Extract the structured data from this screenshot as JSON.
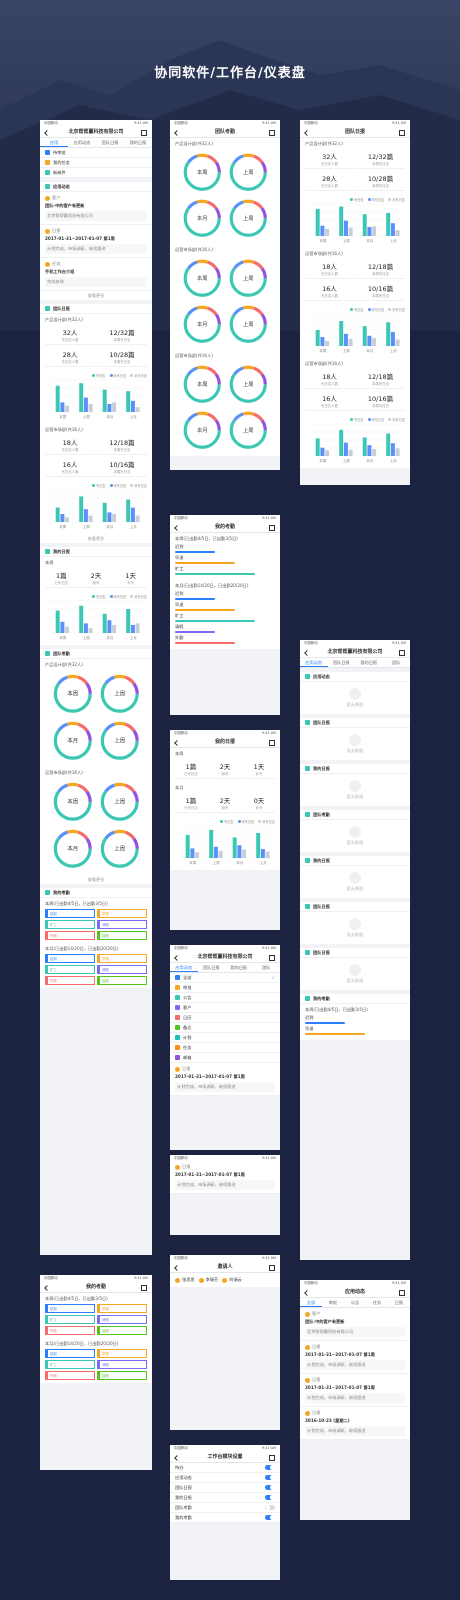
{
  "title": "协同软件/工作台/仪表盘",
  "status": {
    "carrier": "中国移动",
    "time": "9:41 AM"
  },
  "screens": [
    {
      "blocks": [
        {
          "type": "nav",
          "title": "北京帮帮赢科技有限公司"
        },
        {
          "type": "tabs",
          "items": [
            "应用",
            "应用动态",
            "团队日报",
            "我的日报"
          ]
        },
        {
          "type": "menu",
          "items": [
            "待审批",
            "我的任务",
            "新邮件"
          ]
        },
        {
          "type": "section",
          "title": "应用动态"
        },
        {
          "type": "feed",
          "user": "客户",
          "title": "团队-中的客户有更新",
          "text": "北京帮帮赢科技有限公司"
        },
        {
          "type": "feed",
          "user": "日报",
          "title": "2017-01-31~2017-01-07 第1周",
          "text": "计划完成，市场调研，继续跟进"
        },
        {
          "type": "feed",
          "user": "任务",
          "title": "手机工作台介绍",
          "text": "完成修改"
        },
        {
          "type": "more",
          "text": "查看更多"
        },
        {
          "type": "section",
          "title": "团队日报"
        },
        {
          "type": "stats",
          "caption": "产品设计部(共32人)",
          "items": [
            {
              "value": "32人",
              "label": "写日志人数"
            },
            {
              "value": "12/32篇",
              "label": "本周写日志"
            },
            {
              "value": "28人",
              "label": "写日志人数"
            },
            {
              "value": "10/28篇",
              "label": "本周写日志"
            }
          ]
        },
        {
          "type": "bars",
          "categories": [
            "本周",
            "上周",
            "本月",
            "上月"
          ],
          "series": [
            {
              "name": "写日志",
              "color": "#3cc7b5",
              "values": [
                82,
                90,
                70,
                65
              ]
            },
            {
              "name": "未写日志",
              "color": "#5b8ff9",
              "values": [
                30,
                45,
                25,
                35
              ]
            },
            {
              "name": "补写日志",
              "color": "#c8ced8",
              "values": [
                20,
                25,
                30,
                15
              ]
            }
          ]
        },
        {
          "type": "stats",
          "caption": "运营市场部(共16人)",
          "items": [
            {
              "value": "18人",
              "label": "写日志人数"
            },
            {
              "value": "12/18篇",
              "label": "本周写日志"
            },
            {
              "value": "16人",
              "label": "写日志人数"
            },
            {
              "value": "10/16篇",
              "label": "本周写日志"
            }
          ]
        },
        {
          "type": "bars",
          "categories": [
            "本周",
            "上周",
            "本月",
            "上月"
          ],
          "series": [
            {
              "name": "写日志",
              "color": "#3cc7b5",
              "values": [
                45,
                80,
                60,
                70
              ]
            },
            {
              "name": "未写日志",
              "color": "#5b8ff9",
              "values": [
                25,
                40,
                30,
                45
              ]
            },
            {
              "name": "补写日志",
              "color": "#c8ced8",
              "values": [
                15,
                20,
                25,
                20
              ]
            }
          ]
        },
        {
          "type": "more",
          "text": "查看更多"
        },
        {
          "type": "section",
          "title": "我的日报"
        },
        {
          "type": "stats",
          "caption": "本周",
          "items": [
            {
              "value": "1篇",
              "label": "已写日志"
            },
            {
              "value": "2天",
              "label": "缺写"
            },
            {
              "value": "1天",
              "label": "补写"
            }
          ]
        },
        {
          "type": "bars",
          "categories": [
            "本周",
            "上周",
            "本月",
            "上月"
          ],
          "series": [
            {
              "name": "写日志",
              "color": "#3cc7b5",
              "values": [
                70,
                85,
                60,
                75
              ]
            },
            {
              "name": "未写日志",
              "color": "#5b8ff9",
              "values": [
                35,
                30,
                40,
                25
              ]
            },
            {
              "name": "补写日志",
              "color": "#c8ced8",
              "values": [
                20,
                15,
                25,
                30
              ]
            }
          ]
        },
        {
          "type": "section",
          "title": "团队考勤"
        },
        {
          "type": "donuts",
          "caption": "产品设计部(共32人)",
          "items": [
            "本周",
            "上周",
            "本月",
            "上周"
          ]
        },
        {
          "type": "donuts",
          "caption": "运营市场部(共16人)",
          "items": [
            "本周",
            "上周",
            "本月",
            "上周"
          ]
        },
        {
          "type": "more",
          "text": "查看更多"
        },
        {
          "type": "section",
          "title": "我的考勤"
        },
        {
          "type": "tags",
          "caption": "本周(已出勤4/5日，已出勤3/5日)",
          "items": [
            "迟到",
            "早退",
            "旷工",
            "请假",
            "外勤",
            "加班"
          ]
        },
        {
          "type": "tags",
          "caption": "本月(已出勤14/20日，已出勤20/20日)",
          "items": [
            "迟到",
            "早退",
            "旷工",
            "请假",
            "外勤",
            "加班"
          ]
        }
      ]
    },
    {
      "blocks": [
        {
          "type": "nav",
          "title": "我的考勤"
        },
        {
          "type": "tags",
          "caption": "本周(已出勤4/5日，已出勤3/5日)",
          "items": [
            "迟到",
            "早退",
            "旷工",
            "请假",
            "外勤",
            "加班"
          ]
        },
        {
          "type": "tags",
          "caption": "本月(已出勤14/20日，已出勤20/20日)",
          "items": [
            "迟到",
            "早退",
            "旷工",
            "请假",
            "外勤",
            "加班"
          ]
        }
      ]
    },
    {
      "blocks": [
        {
          "type": "nav",
          "title": "团队考勤"
        },
        {
          "type": "donuts",
          "caption": "产品设计部(共32人)",
          "items": [
            "本周",
            "上周",
            "本月",
            "上周"
          ]
        },
        {
          "type": "donuts",
          "caption": "运营市场部(共16人)",
          "items": [
            "本周",
            "上周",
            "本月",
            "上周"
          ]
        },
        {
          "type": "donuts",
          "caption": "运营市场部(共16人)",
          "items": [
            "本周",
            "上周",
            "本月",
            "上周"
          ]
        }
      ]
    },
    {
      "blocks": [
        {
          "type": "nav",
          "title": "我的考勤"
        },
        {
          "type": "progress",
          "caption": "本周(已出勤4/5日，已出勤3/5日)",
          "items": [
            "迟到",
            "早退",
            "旷工"
          ]
        },
        {
          "type": "progress",
          "caption": "本月(已出勤14/20日，已出勤20/20日)",
          "items": [
            "迟到",
            "早退",
            "旷工",
            "请假",
            "外勤"
          ]
        }
      ]
    },
    {
      "blocks": [
        {
          "type": "nav",
          "title": "我的日报"
        },
        {
          "type": "stats",
          "caption": "本周",
          "items": [
            {
              "value": "1篇",
              "label": "已写日志"
            },
            {
              "value": "2天",
              "label": "缺写"
            },
            {
              "value": "1天",
              "label": "补写"
            }
          ]
        },
        {
          "type": "stats",
          "caption": "本月",
          "items": [
            {
              "value": "1篇",
              "label": "已写日志"
            },
            {
              "value": "2天",
              "label": "缺写"
            },
            {
              "value": "0天",
              "label": "补写"
            }
          ]
        },
        {
          "type": "bars",
          "categories": [
            "本周",
            "上周",
            "本月",
            "上月"
          ],
          "series": [
            {
              "name": "写日志",
              "color": "#3cc7b5",
              "values": [
                72,
                88,
                64,
                78
              ]
            },
            {
              "name": "未写日志",
              "color": "#5b8ff9",
              "values": [
                30,
                35,
                40,
                28
              ]
            },
            {
              "name": "补写日志",
              "color": "#c8ced8",
              "values": [
                18,
                22,
                26,
                20
              ]
            }
          ]
        }
      ]
    },
    {
      "blocks": [
        {
          "type": "nav",
          "title": "北京帮帮赢科技有限公司"
        },
        {
          "type": "tabs",
          "items": [
            "应用动态",
            "团队日报",
            "我的日报",
            "团队"
          ]
        },
        {
          "type": "checklist",
          "items": [
            "全部",
            "审批",
            "公告",
            "客户",
            "日历",
            "备忘",
            "计划",
            "任务",
            "邮箱"
          ]
        },
        {
          "type": "feed",
          "user": "日报",
          "title": "2017-01-31~2017-01-07 第1周",
          "text": "计划完成，市场调研，继续跟进"
        }
      ]
    },
    {
      "blocks": [
        {
          "type": "feed",
          "user": "日报",
          "title": "2017-01-31~2017-01-07 第1周",
          "text": "计划完成，市场调研，继续跟进"
        }
      ]
    },
    {
      "blocks": [
        {
          "type": "nav",
          "title": "邀请人"
        },
        {
          "type": "contacts",
          "items": [
            "张思思",
            "李瑞芬",
            "刘瑞云"
          ]
        }
      ]
    },
    {
      "blocks": [
        {
          "type": "nav",
          "title": "工作台模块设置"
        },
        {
          "type": "toggles",
          "items": [
            {
              "label": "待办",
              "on": true
            },
            {
              "label": "应用动态",
              "on": true
            },
            {
              "label": "团队日报",
              "on": true
            },
            {
              "label": "我的日报",
              "on": true
            },
            {
              "label": "团队考勤",
              "on": false
            },
            {
              "label": "我的考勤",
              "on": true
            }
          ]
        }
      ]
    },
    {
      "blocks": [
        {
          "type": "nav",
          "title": "团队日报"
        },
        {
          "type": "stats",
          "caption": "产品设计部(共32人)",
          "items": [
            {
              "value": "32人",
              "label": "写日志人数"
            },
            {
              "value": "12/32篇",
              "label": "本周写日志"
            },
            {
              "value": "28人",
              "label": "写日志人数"
            },
            {
              "value": "10/28篇",
              "label": "本周写日志"
            }
          ]
        },
        {
          "type": "bars",
          "categories": [
            "本周",
            "上周",
            "本月",
            "上月"
          ],
          "series": [
            {
              "name": "写日志",
              "color": "#3cc7b5",
              "values": [
                85,
                92,
                68,
                72
              ]
            },
            {
              "name": "未写日志",
              "color": "#5b8ff9",
              "values": [
                32,
                48,
                28,
                40
              ]
            },
            {
              "name": "补写日志",
              "color": "#c8ced8",
              "values": [
                22,
                26,
                30,
                18
              ]
            }
          ]
        },
        {
          "type": "stats",
          "caption": "运营市场部(共16人)",
          "items": [
            {
              "value": "18人",
              "label": "写日志人数"
            },
            {
              "value": "12/18篇",
              "label": "本周写日志"
            },
            {
              "value": "16人",
              "label": "写日志人数"
            },
            {
              "value": "10/16篇",
              "label": "本周写日志"
            }
          ]
        },
        {
          "type": "bars",
          "categories": [
            "本周",
            "上周",
            "本月",
            "上月"
          ],
          "series": [
            {
              "name": "写日志",
              "color": "#3cc7b5",
              "values": [
                50,
                78,
                62,
                74
              ]
            },
            {
              "name": "未写日志",
              "color": "#5b8ff9",
              "values": [
                28,
                38,
                32,
                44
              ]
            },
            {
              "name": "补写日志",
              "color": "#c8ced8",
              "values": [
                16,
                22,
                24,
                20
              ]
            }
          ]
        },
        {
          "type": "stats",
          "caption": "运营市场部(共16人)",
          "items": [
            {
              "value": "18人",
              "label": "写日志人数"
            },
            {
              "value": "12/18篇",
              "label": "本周写日志"
            },
            {
              "value": "16人",
              "label": "写日志人数"
            },
            {
              "value": "10/16篇",
              "label": "本周写日志"
            }
          ]
        },
        {
          "type": "bars",
          "categories": [
            "本周",
            "上周",
            "本月",
            "上月"
          ],
          "series": [
            {
              "name": "写日志",
              "color": "#3cc7b5",
              "values": [
                55,
                82,
                58,
                70
              ]
            },
            {
              "name": "未写日志",
              "color": "#5b8ff9",
              "values": [
                26,
                42,
                34,
                40
              ]
            },
            {
              "name": "补写日志",
              "color": "#c8ced8",
              "values": [
                18,
                20,
                22,
                24
              ]
            }
          ]
        }
      ]
    },
    {
      "blocks": [
        {
          "type": "nav",
          "title": "北京帮帮赢科技有限公司"
        },
        {
          "type": "tabs",
          "items": [
            "应用动态",
            "团队日报",
            "我的日报",
            "团队"
          ]
        },
        {
          "type": "section",
          "title": "应用动态"
        },
        {
          "type": "empty",
          "text": "暂无数据"
        },
        {
          "type": "section",
          "title": "团队日报"
        },
        {
          "type": "empty",
          "text": "暂无数据"
        },
        {
          "type": "section",
          "title": "我的日报"
        },
        {
          "type": "empty",
          "text": "暂无数据"
        },
        {
          "type": "section",
          "title": "团队考勤"
        },
        {
          "type": "empty",
          "text": "暂无数据"
        },
        {
          "type": "section",
          "title": "我的日报"
        },
        {
          "type": "empty",
          "text": "暂无数据"
        },
        {
          "type": "section",
          "title": "团队日报"
        },
        {
          "type": "empty",
          "text": "暂无数据"
        },
        {
          "type": "section",
          "title": "团队日报"
        },
        {
          "type": "empty",
          "text": "暂无数据"
        },
        {
          "type": "section",
          "title": "我的考勤"
        },
        {
          "type": "progress",
          "caption": "本周(已出勤4/5日，已出勤3/5日)",
          "items": [
            "迟到",
            "早退"
          ]
        }
      ]
    },
    {
      "blocks": [
        {
          "type": "nav",
          "title": "应用动态"
        },
        {
          "type": "tabs",
          "items": [
            "全部",
            "审批",
            "公告",
            "任务",
            "日报"
          ]
        },
        {
          "type": "feed",
          "user": "客户",
          "title": "团队-中的客户有更新",
          "text": "北京帮帮赢科技有限公司"
        },
        {
          "type": "feed",
          "user": "日报",
          "title": "2017-01-31~2017-01-07 第1周",
          "text": "计划完成，市场调研，继续跟进"
        },
        {
          "type": "feed",
          "user": "日报",
          "title": "2017-01-31~2017-01-07 第1周",
          "text": "计划完成，市场调研，继续跟进"
        },
        {
          "type": "feed",
          "user": "日报",
          "title": "2016-10-23 (星期二)",
          "text": "计划完成，市场调研，继续跟进"
        }
      ]
    }
  ]
}
